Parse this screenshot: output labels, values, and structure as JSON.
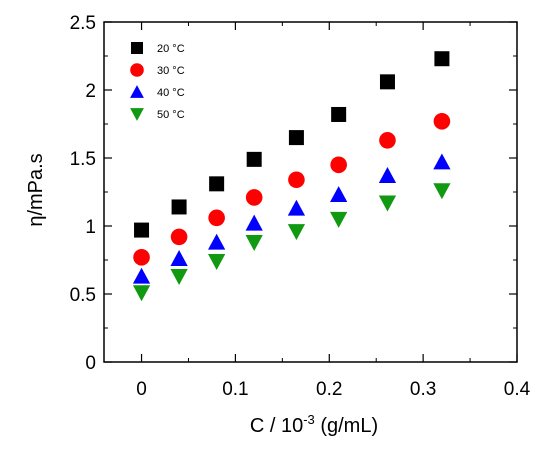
{
  "chart_data": {
    "type": "scatter",
    "title": "",
    "xlabel": "C / 10",
    "xlabel_exponent": "-3",
    "xlabel_suffix": " (g/mL)",
    "ylabel": "η/mPa.s",
    "xlim": [
      -0.04,
      0.4
    ],
    "ylim": [
      0,
      2.5
    ],
    "x_ticks": [
      0,
      0.1,
      0.2,
      0.3,
      0.4
    ],
    "x_tick_labels": [
      "0",
      "0.1",
      "0.2",
      "0.3",
      "0.4"
    ],
    "y_ticks": [
      0,
      0.5,
      1,
      1.5,
      2,
      2.5
    ],
    "y_tick_labels": [
      "0",
      "0.5",
      "1",
      "1.5",
      "2",
      "2.5"
    ],
    "grid": false,
    "legend_position": "top-left",
    "x": [
      0,
      0.04,
      0.08,
      0.12,
      0.165,
      0.21,
      0.262,
      0.32
    ],
    "series": [
      {
        "name": "20 °C",
        "marker": "square",
        "color": "#000000",
        "values": [
          0.97,
          1.14,
          1.31,
          1.49,
          1.65,
          1.82,
          2.06,
          2.23
        ]
      },
      {
        "name": "30 °C",
        "marker": "circle",
        "color": "#ff0000",
        "values": [
          0.77,
          0.92,
          1.06,
          1.21,
          1.34,
          1.45,
          1.63,
          1.77
        ]
      },
      {
        "name": "40 °C",
        "marker": "triangle-up",
        "color": "#0000ff",
        "values": [
          0.63,
          0.76,
          0.88,
          1.02,
          1.13,
          1.23,
          1.37,
          1.47
        ]
      },
      {
        "name": "50 °C",
        "marker": "triangle-down",
        "color": "#119911",
        "values": [
          0.51,
          0.63,
          0.74,
          0.88,
          0.96,
          1.05,
          1.17,
          1.26
        ]
      }
    ]
  }
}
